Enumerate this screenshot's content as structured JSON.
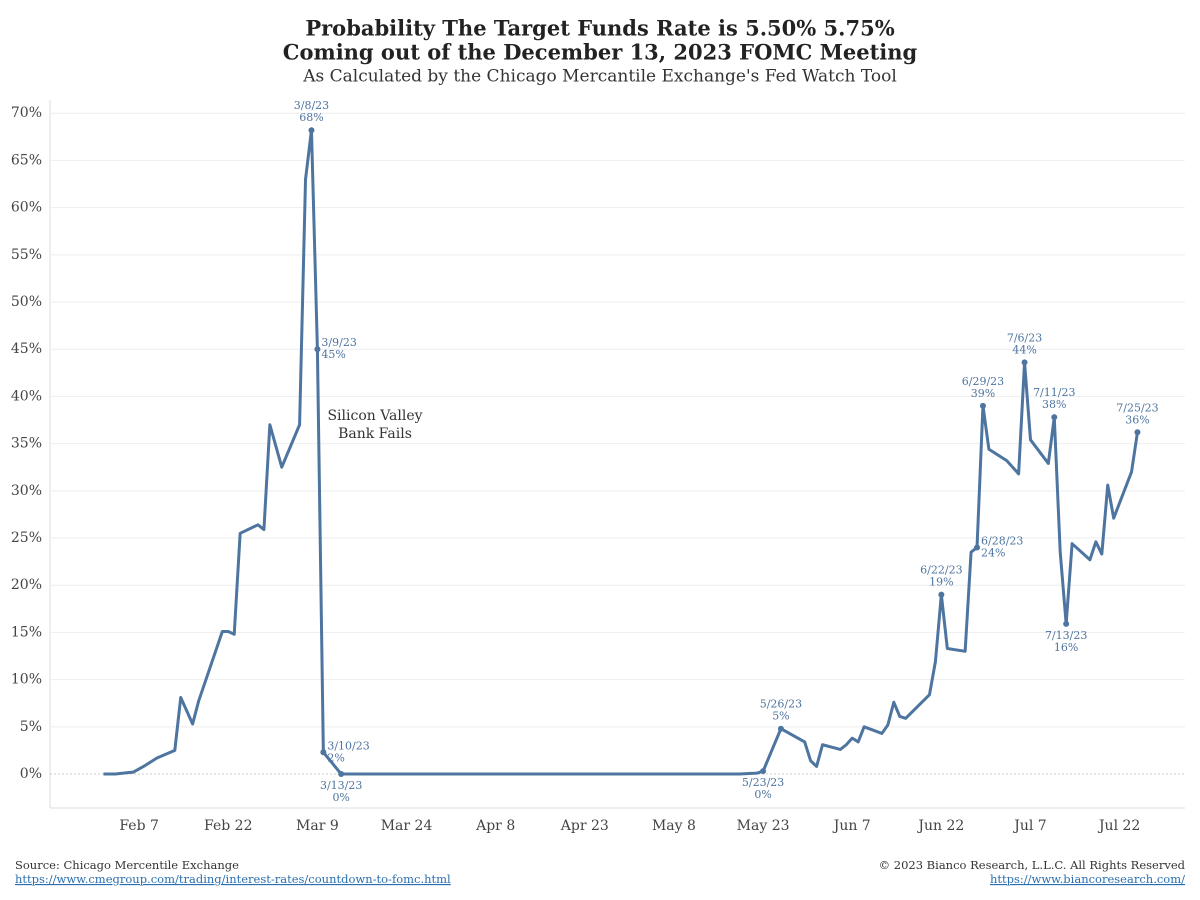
{
  "chart_data": {
    "type": "line",
    "title": "Probability The Target Funds Rate is 5.50% 5.75%",
    "subtitle": "Coming out of the December 13, 2023 FOMC Meeting",
    "subtitle2": "As Calculated by the Chicago Mercantile Exchange's Fed Watch Tool",
    "x": [
      "Feb 1",
      "Feb 3",
      "Feb 6",
      "Feb 8",
      "Feb 10",
      "Feb 13",
      "Feb 14",
      "Feb 16",
      "Feb 17",
      "Feb 21",
      "Feb 22",
      "Feb 23",
      "Feb 24",
      "Feb 27",
      "Feb 28",
      "Mar 1",
      "Mar 3",
      "Mar 6",
      "Mar 7",
      "Mar 8",
      "Mar 9",
      "Mar 10",
      "Mar 13",
      "Mar 17",
      "Mar 24",
      "Mar 31",
      "Apr 7",
      "Apr 14",
      "Apr 21",
      "Apr 28",
      "May 5",
      "May 12",
      "May 19",
      "May 22",
      "May 23",
      "May 26",
      "May 30",
      "May 31",
      "Jun 1",
      "Jun 2",
      "Jun 5",
      "Jun 6",
      "Jun 7",
      "Jun 8",
      "Jun 9",
      "Jun 12",
      "Jun 13",
      "Jun 14",
      "Jun 15",
      "Jun 16",
      "Jun 20",
      "Jun 21",
      "Jun 22",
      "Jun 23",
      "Jun 26",
      "Jun 27",
      "Jun 28",
      "Jun 29",
      "Jun 30",
      "Jul 3",
      "Jul 5",
      "Jul 6",
      "Jul 7",
      "Jul 10",
      "Jul 11",
      "Jul 12",
      "Jul 13",
      "Jul 14",
      "Jul 17",
      "Jul 18",
      "Jul 19",
      "Jul 20",
      "Jul 21",
      "Jul 24",
      "Jul 25"
    ],
    "series": [
      {
        "color": "#4e74a0",
        "values": [
          0,
          0,
          0.2,
          0.9,
          1.7,
          2.5,
          8.1,
          5.3,
          7.7,
          15.1,
          15.1,
          14.8,
          25.5,
          26.4,
          25.9,
          37,
          32.5,
          37,
          63,
          68.2,
          45,
          2.3,
          0,
          0,
          0,
          0,
          0,
          0,
          0,
          0,
          0,
          0,
          0,
          0.1,
          0.3,
          4.8,
          3.4,
          1.4,
          0.8,
          3.1,
          2.6,
          3.1,
          3.8,
          3.4,
          5.0,
          4.3,
          5.2,
          7.6,
          6.1,
          5.9,
          8.4,
          11.9,
          19.0,
          13.3,
          13.0,
          23.5,
          24.0,
          39.0,
          34.4,
          33.2,
          31.8,
          43.6,
          35.4,
          32.9,
          37.8,
          23.5,
          15.9,
          24.4,
          22.7,
          24.6,
          23.3,
          30.6,
          27.1,
          32.0,
          36.2
        ],
        "date_labels": [
          null,
          null,
          null,
          null,
          null,
          null,
          null,
          null,
          null,
          null,
          null,
          null,
          null,
          null,
          null,
          null,
          null,
          null,
          null,
          "3/8/23",
          "3/9/23",
          "3/10/23",
          "3/13/23",
          null,
          null,
          null,
          null,
          null,
          null,
          null,
          null,
          null,
          null,
          null,
          "5/23/23",
          "5/26/23",
          null,
          null,
          null,
          null,
          null,
          null,
          null,
          null,
          null,
          null,
          null,
          null,
          null,
          null,
          null,
          null,
          "6/22/23",
          null,
          null,
          null,
          "6/28/23",
          "6/29/23",
          null,
          null,
          null,
          "7/6/23",
          null,
          null,
          "7/11/23",
          null,
          "7/13/23",
          null,
          null,
          null,
          null,
          null,
          null,
          null,
          "7/25/23"
        ],
        "value_labels": [
          null,
          null,
          null,
          null,
          null,
          null,
          null,
          null,
          null,
          null,
          null,
          null,
          null,
          null,
          null,
          null,
          null,
          null,
          null,
          "68%",
          "45%",
          "2%",
          "0%",
          null,
          null,
          null,
          null,
          null,
          null,
          null,
          null,
          null,
          null,
          null,
          "0%",
          "5%",
          null,
          null,
          null,
          null,
          null,
          null,
          null,
          null,
          null,
          null,
          null,
          null,
          null,
          null,
          null,
          null,
          "19%",
          null,
          null,
          null,
          "24%",
          "39%",
          null,
          null,
          null,
          "44%",
          null,
          null,
          "38%",
          null,
          "16%",
          null,
          null,
          null,
          null,
          null,
          null,
          null,
          "36%"
        ]
      }
    ],
    "xlim": [
      "Jan 23",
      "Aug 2"
    ],
    "xticks": [
      "Feb 7",
      "Feb 22",
      "Mar 9",
      "Mar 24",
      "Apr 8",
      "Apr 23",
      "May 8",
      "May 23",
      "Jun 7",
      "Jun 22",
      "Jul 7",
      "Jul 22"
    ],
    "ylim": [
      -3.6,
      71.4
    ],
    "yticks": [
      {
        "value": 0,
        "label": "0%"
      },
      {
        "value": 5,
        "label": "5%"
      },
      {
        "value": 10,
        "label": "10%"
      },
      {
        "value": 15,
        "label": "15%"
      },
      {
        "value": 20,
        "label": "20%"
      },
      {
        "value": 25,
        "label": "25%"
      },
      {
        "value": 30,
        "label": "30%"
      },
      {
        "value": 35,
        "label": "35%"
      },
      {
        "value": 40,
        "label": "40%"
      },
      {
        "value": 45,
        "label": "45%"
      },
      {
        "value": 50,
        "label": "50%"
      },
      {
        "value": 55,
        "label": "55%"
      },
      {
        "value": 60,
        "label": "60%"
      },
      {
        "value": 65,
        "label": "65%"
      },
      {
        "value": 70,
        "label": "70%"
      }
    ],
    "grid": true,
    "annotations": [
      {
        "lines": [
          "Silicon Valley",
          "Bank Fails"
        ]
      }
    ],
    "footer": {
      "source": "Source: Chicago Mercentile Exchange",
      "source_url": "https://www.cmegroup.com/trading/interest-rates/countdown-to-fomc.html",
      "copyright": "© 2023 Bianco Research, L.L.C. All Rights Reserved",
      "site_url": "https://www.biancoresearch.com/"
    }
  }
}
